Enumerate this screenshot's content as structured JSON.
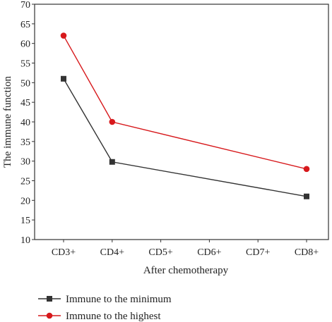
{
  "chart_data": {
    "type": "line",
    "title": "",
    "xlabel": "After chemotherapy",
    "ylabel": "The immune function",
    "categories": [
      "CD3+",
      "CD4+",
      "CD5+",
      "CD6+",
      "CD7+",
      "CD8+"
    ],
    "ylim": [
      10,
      70
    ],
    "yticks": [
      10,
      15,
      20,
      25,
      30,
      35,
      40,
      45,
      50,
      55,
      60,
      65,
      70
    ],
    "grid": false,
    "legend_position": "bottom-left",
    "series": [
      {
        "name": "Immune to the minimum",
        "color": "#333333",
        "marker": "square",
        "points": [
          {
            "category": "CD3+",
            "value": 51
          },
          {
            "category": "CD4+",
            "value": 29.8
          },
          {
            "category": "CD8+",
            "value": 21
          }
        ]
      },
      {
        "name": "Immune to the highest",
        "color": "#d7191c",
        "marker": "circle",
        "points": [
          {
            "category": "CD3+",
            "value": 62
          },
          {
            "category": "CD4+",
            "value": 40
          },
          {
            "category": "CD8+",
            "value": 28
          }
        ]
      }
    ]
  }
}
